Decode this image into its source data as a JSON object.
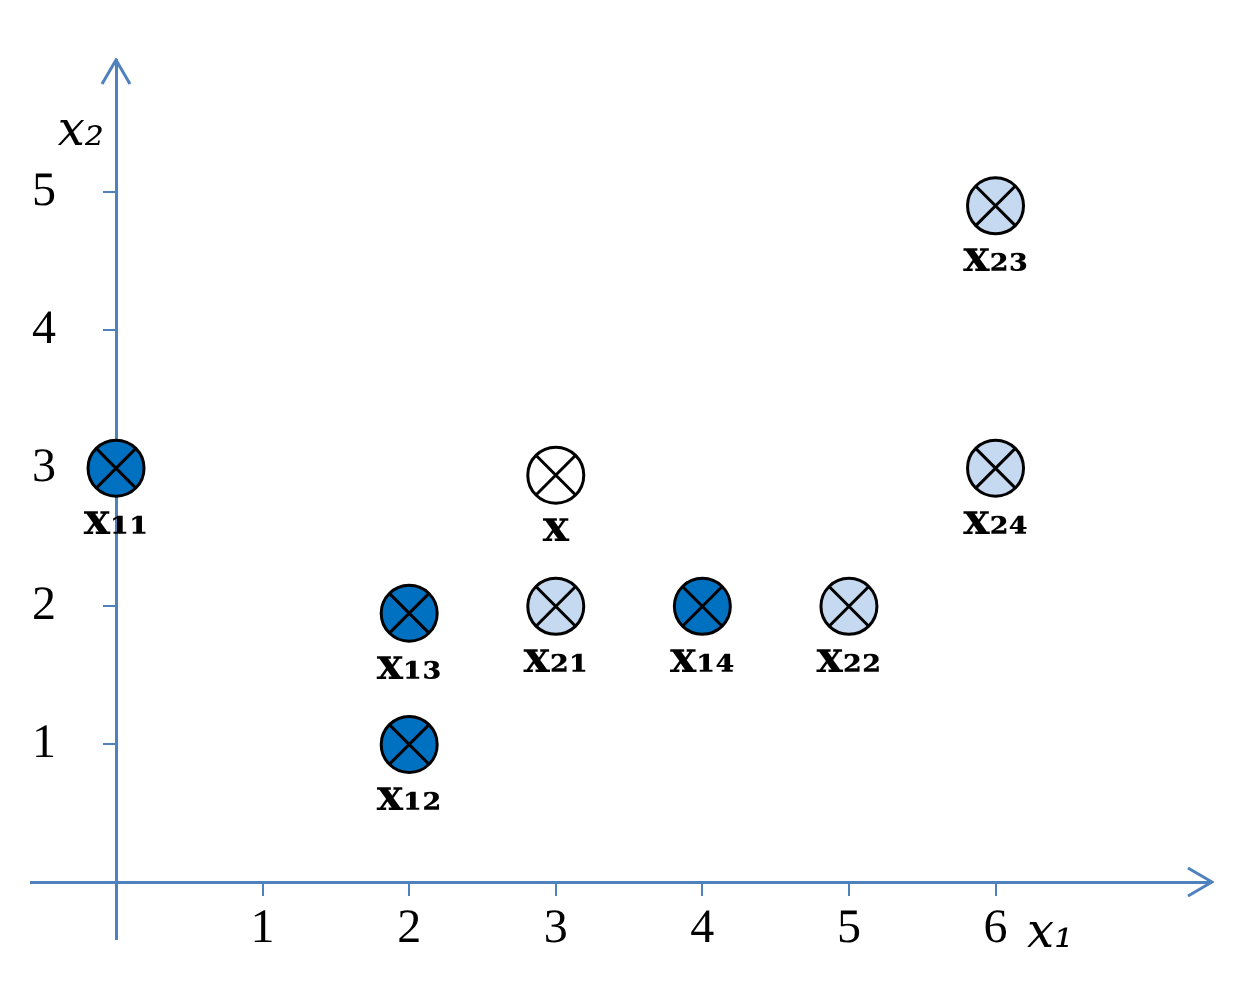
{
  "chart_data": {
    "type": "scatter",
    "xlabel": "x₁",
    "ylabel": "x₂",
    "xlim": [
      -0.58,
      7.47
    ],
    "ylim": [
      -0.41,
      5.95
    ],
    "xticks": [
      1,
      2,
      3,
      4,
      5,
      6
    ],
    "yticks": [
      1,
      2,
      3,
      4,
      5
    ],
    "marker": "circle",
    "legend": false,
    "grid": false,
    "series": [
      {
        "color": "#0070c0",
        "x": [
          0,
          2,
          2,
          4
        ],
        "values": [
          3,
          1,
          1.95,
          2
        ]
      },
      {
        "color": "#c5d9f1",
        "x": [
          3,
          5,
          6,
          6
        ],
        "values": [
          2,
          2,
          4.9,
          3
        ]
      },
      {
        "color": "#ffffff",
        "x": [
          3
        ],
        "values": [
          2.95
        ]
      }
    ],
    "annotations": [
      {
        "text": "x₁₁",
        "x": 0,
        "y": 3
      },
      {
        "text": "x₁₂",
        "x": 2,
        "y": 1
      },
      {
        "text": "x₁₃",
        "x": 2,
        "y": 1.95
      },
      {
        "text": "x₁₄",
        "x": 4,
        "y": 2
      },
      {
        "text": "x₂₁",
        "x": 3,
        "y": 2
      },
      {
        "text": "x₂₂",
        "x": 5,
        "y": 2
      },
      {
        "text": "x₂₃",
        "x": 6,
        "y": 4.9
      },
      {
        "text": "x₂₄",
        "x": 6,
        "y": 3
      },
      {
        "text": "x",
        "x": 3,
        "y": 2.95
      }
    ]
  }
}
